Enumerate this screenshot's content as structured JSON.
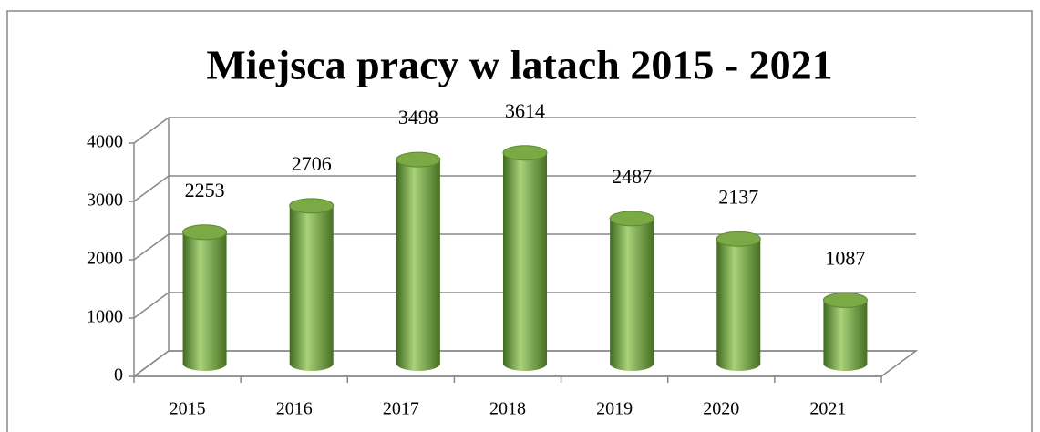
{
  "chart_data": {
    "type": "bar",
    "title": "Miejsca pracy w latach 2015 - 2021",
    "categories": [
      "2015",
      "2016",
      "2017",
      "2018",
      "2019",
      "2020",
      "2021"
    ],
    "values": [
      2253,
      2706,
      3498,
      3614,
      2487,
      2137,
      1087
    ],
    "color": "#6e9c3c",
    "ylim": [
      0,
      4000
    ],
    "yticks": [
      0,
      1000,
      2000,
      3000,
      4000
    ],
    "grid": true
  }
}
